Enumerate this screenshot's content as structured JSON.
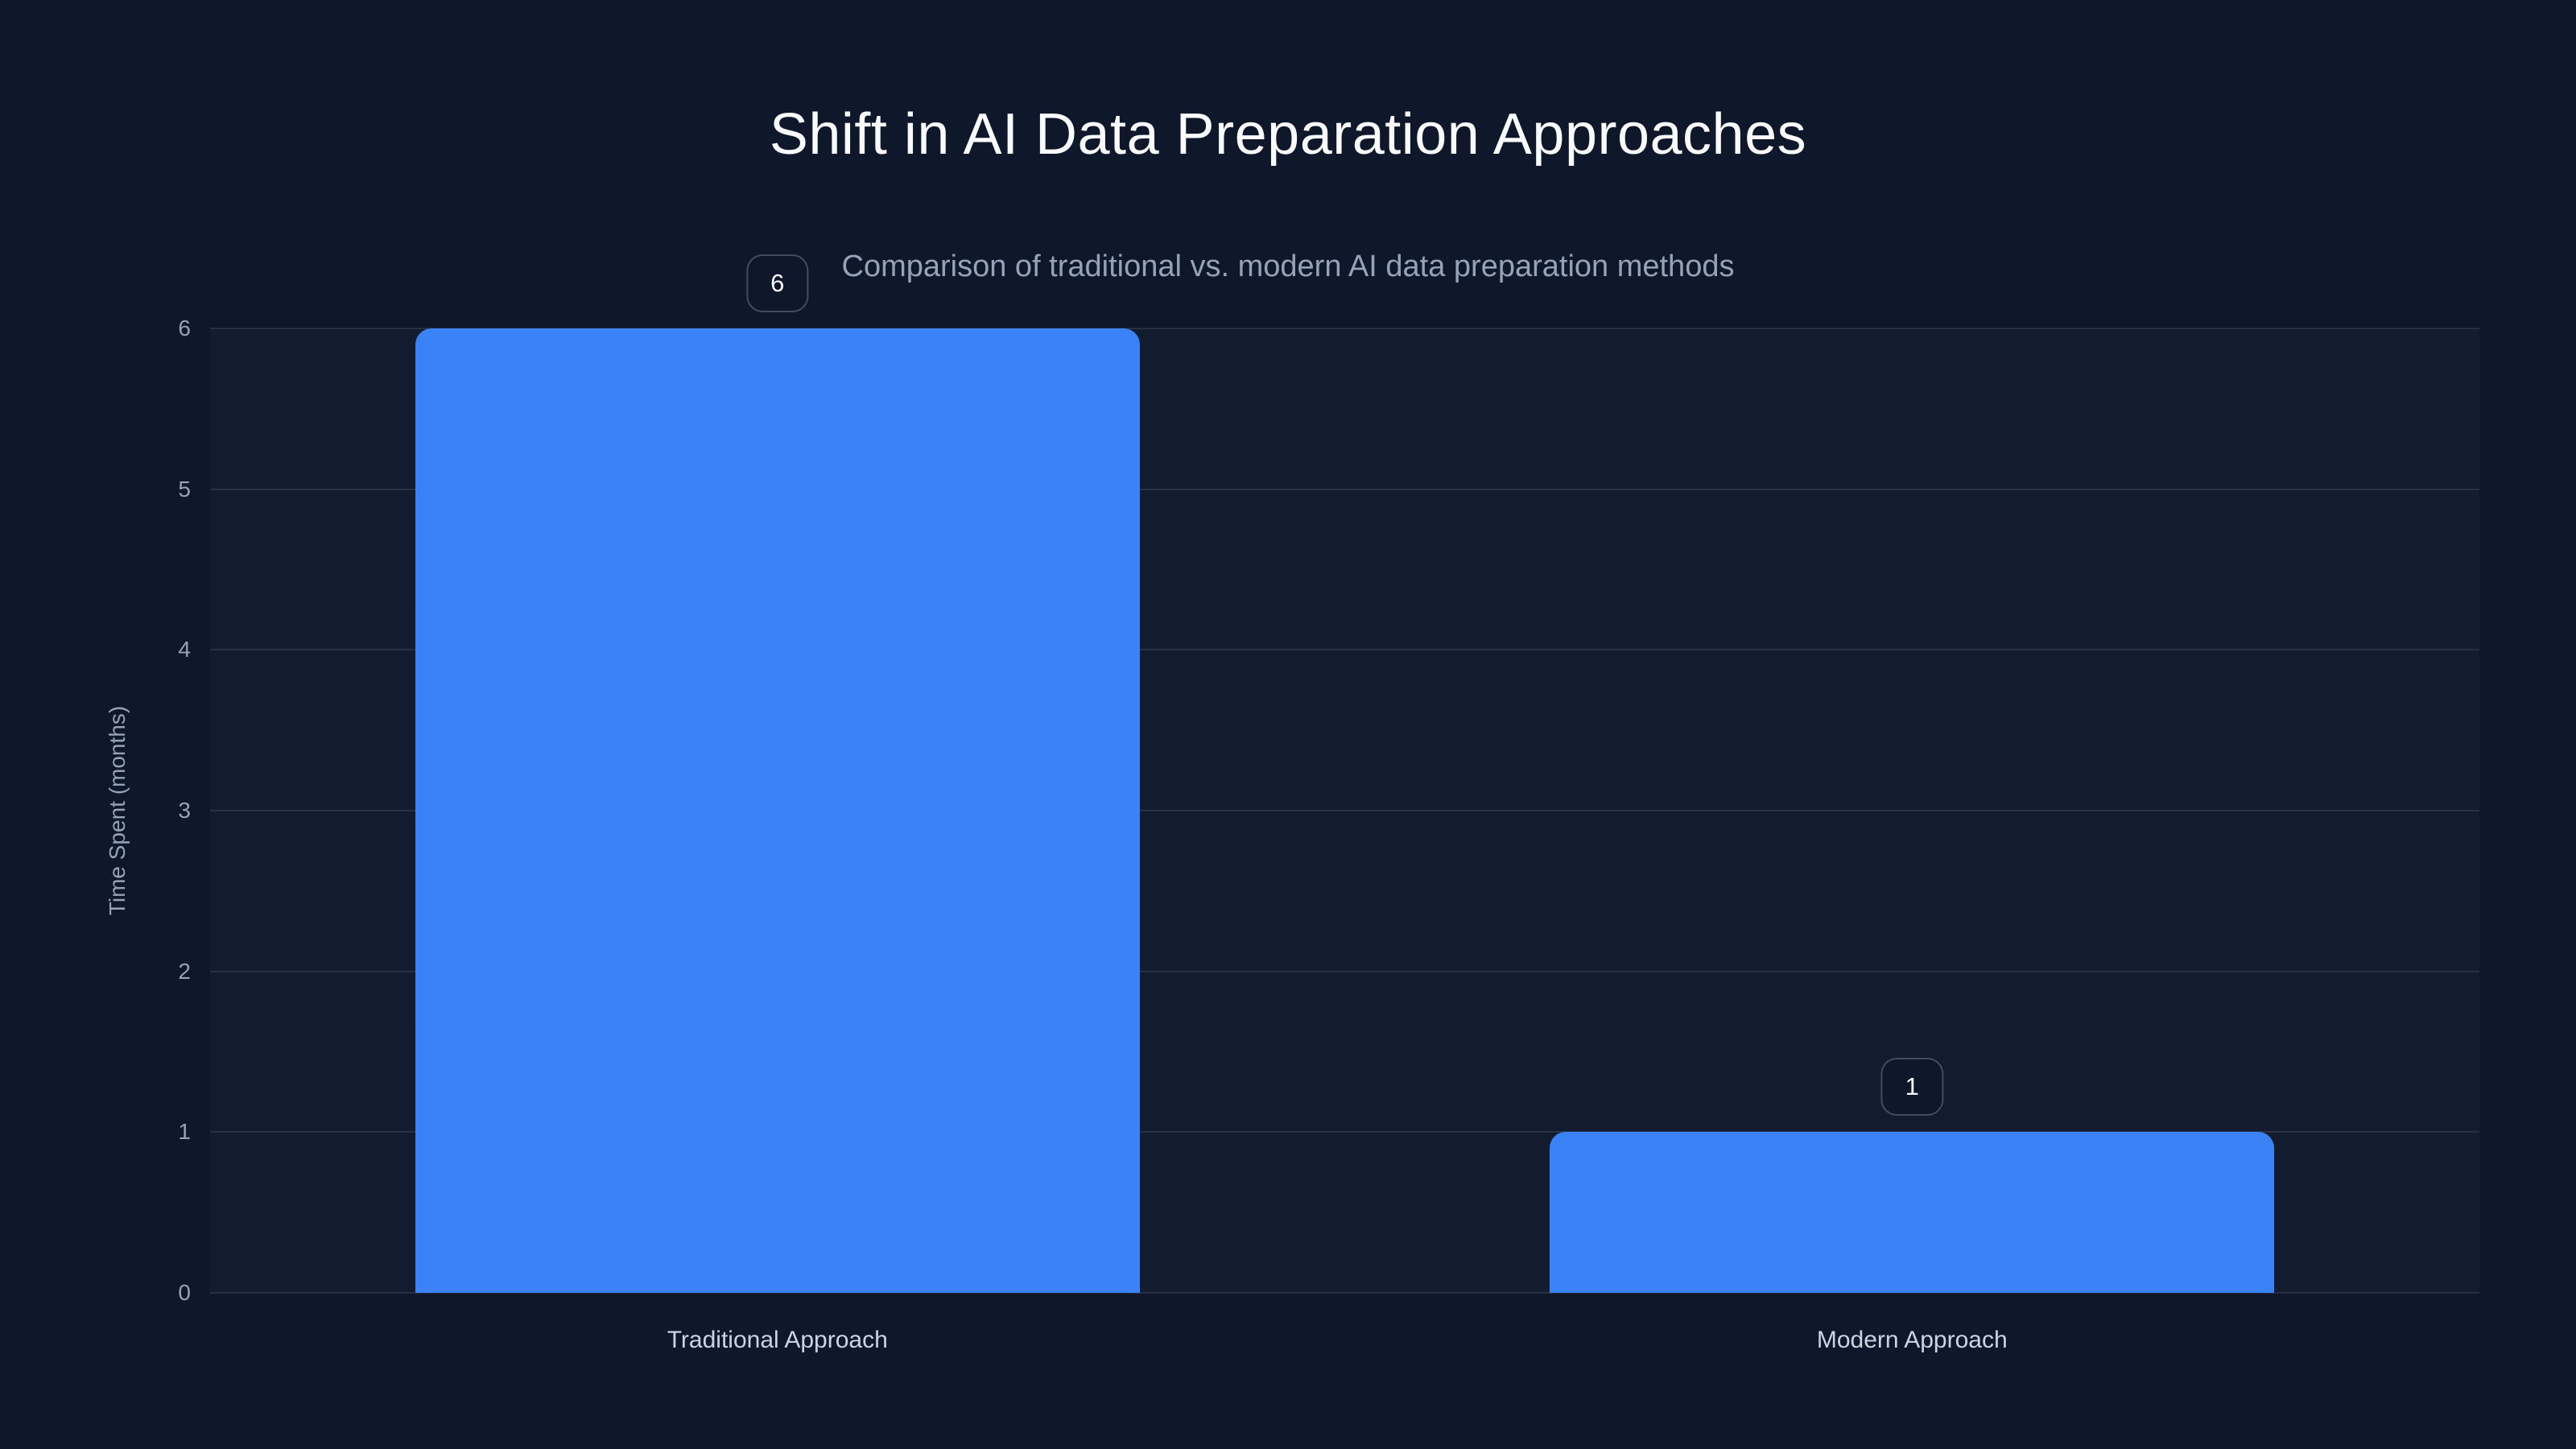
{
  "page": {
    "background_color": "#0f172a"
  },
  "chart_data": {
    "type": "bar",
    "title": "Shift in AI Data Preparation Approaches",
    "subtitle": "Comparison of traditional vs. modern AI data preparation methods",
    "categories": [
      "Traditional Approach",
      "Modern Approach"
    ],
    "values": [
      6,
      1
    ],
    "value_labels": [
      "6",
      "1"
    ],
    "xlabel": "",
    "ylabel": "Time Spent (months)",
    "ylim": [
      0,
      6
    ],
    "yticks": [
      0,
      1,
      2,
      3,
      4,
      5,
      6
    ],
    "grid": "horizontal",
    "legend_position": "none",
    "colors": {
      "bar": "#3b82f6",
      "gridline": "rgba(148,163,184,0.16)",
      "title": "#f8fafc",
      "subtitle": "#94a3b8",
      "tick_label": "#94a3b8",
      "category_label": "#cbd5e1",
      "badge_text": "#f8fafc",
      "badge_border": "rgba(148,163,184,0.38)",
      "background": "#0f172a"
    }
  }
}
